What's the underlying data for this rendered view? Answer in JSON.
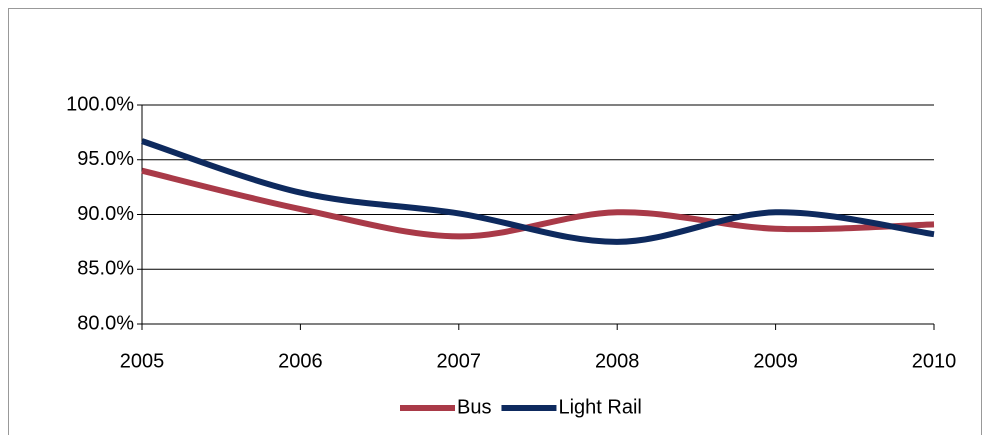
{
  "chart_data": {
    "type": "line",
    "categories": [
      "2005",
      "2006",
      "2007",
      "2008",
      "2009",
      "2010"
    ],
    "series": [
      {
        "name": "Bus",
        "color": "#a93a48",
        "values": [
          94.0,
          90.5,
          88.0,
          90.2,
          88.7,
          89.1
        ]
      },
      {
        "name": "Light Rail",
        "color": "#0e2a5e",
        "values": [
          96.7,
          92.0,
          90.1,
          87.5,
          90.2,
          88.2
        ]
      }
    ],
    "ylim": [
      80,
      100
    ],
    "yticks": [
      {
        "value": 80,
        "label": "80.0%"
      },
      {
        "value": 85,
        "label": "85.0%"
      },
      {
        "value": 90,
        "label": "90.0%"
      },
      {
        "value": 95,
        "label": "95.0%"
      },
      {
        "value": 100,
        "label": "100.0%"
      }
    ],
    "grid": true,
    "smooth": true,
    "legend": "bottom"
  }
}
